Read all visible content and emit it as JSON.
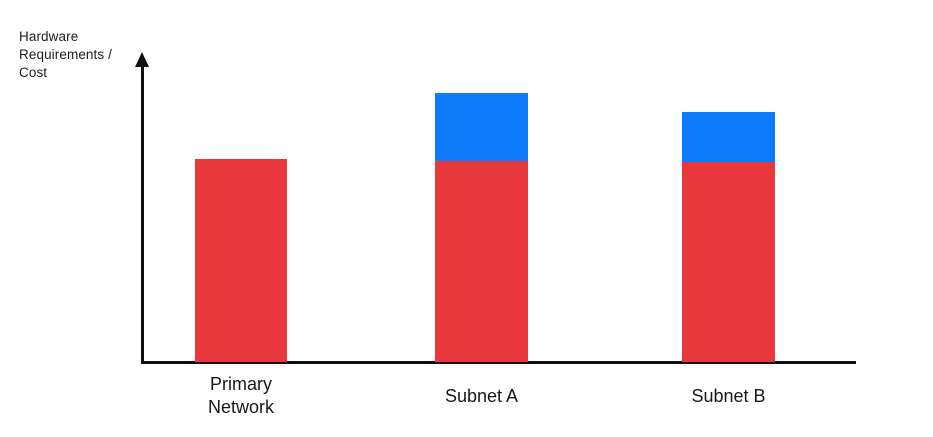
{
  "chart": {
    "y_axis_label": "Hardware\nRequirements /\nCost",
    "colors": {
      "red_segment": "#E7393B",
      "blue_segment": "#107AFD",
      "axis": "#111111",
      "text": "#16181c",
      "background": "#FFFFFF"
    }
  },
  "chart_data": {
    "type": "bar",
    "stacked": true,
    "title": "",
    "categories": [
      "Primary\nNetwork",
      "Subnet A",
      "Subnet B"
    ],
    "series": [
      {
        "name": "red-base-segment",
        "color": "#E7393B",
        "values": [
          100,
          99,
          98.5
        ]
      },
      {
        "name": "blue-top-segment",
        "color": "#107AFD",
        "values": [
          0,
          33.5,
          24.5
        ]
      }
    ],
    "xlabel": "",
    "ylabel": "Hardware Requirements / Cost",
    "ylim": [
      0,
      151
    ],
    "y_axis_numeric_labels": false,
    "x_axis_arrow": false,
    "y_axis_arrow": true,
    "legend": "none",
    "grid": false
  }
}
